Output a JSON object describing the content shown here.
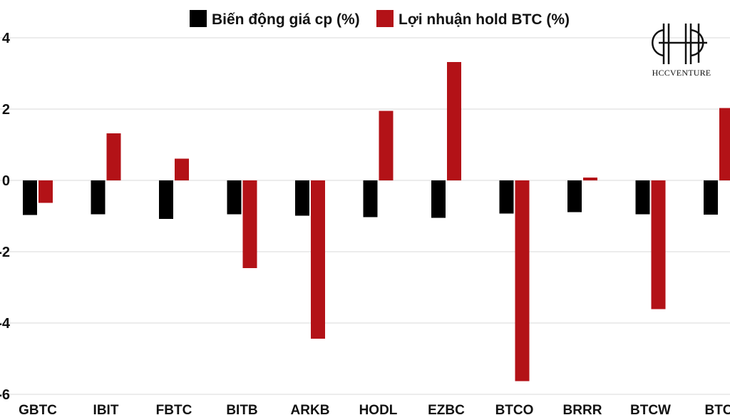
{
  "chart_data": {
    "type": "bar",
    "title": "",
    "xlabel": "",
    "ylabel": "",
    "categories": [
      "GBTC",
      "IBIT",
      "FBTC",
      "BITB",
      "ARKB",
      "HODL",
      "EZBC",
      "BTCO",
      "BRRR",
      "BTCW",
      "BTC"
    ],
    "series": [
      {
        "name": "Biến động giá cp (%)",
        "color": "#000000",
        "values": [
          -0.97,
          -0.95,
          -1.08,
          -0.95,
          -0.99,
          -1.03,
          -1.05,
          -0.93,
          -0.89,
          -0.95,
          -0.96
        ]
      },
      {
        "name": "Lợi nhuận hold BTC (%)",
        "color": "#b31217",
        "values": [
          -0.63,
          1.32,
          0.61,
          -2.46,
          -4.44,
          1.95,
          3.32,
          -5.63,
          0.08,
          -3.61,
          2.03
        ]
      }
    ],
    "ylim": [
      -6,
      4
    ],
    "yticks": [
      -6,
      -4,
      -2,
      0,
      2,
      4
    ],
    "ytick_labels": [
      "-6",
      "-4",
      "-2",
      "0",
      "2",
      "4"
    ],
    "grid": true,
    "legend_position": "top-center"
  },
  "logo": {
    "text": "HCCVENTURE",
    "icon": "hcc-monogram-icon"
  }
}
